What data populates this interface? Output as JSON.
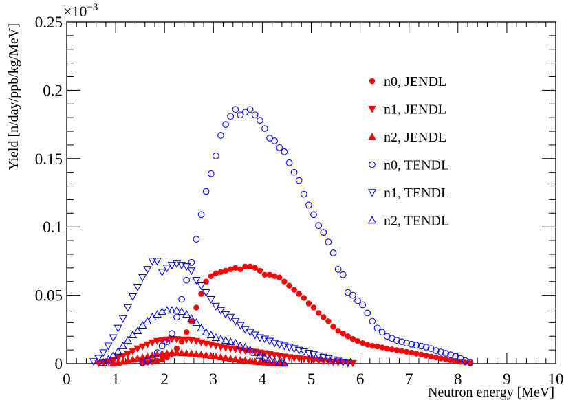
{
  "chart_data": {
    "type": "scatter",
    "xlabel": "Neutron energy [MeV]",
    "ylabel": "Yield [n/day/ppb/kg/MeV]",
    "y_exponent_label": "×10",
    "y_exponent_power": "−3",
    "xlim": [
      0,
      10
    ],
    "ylim": [
      0,
      0.25
    ],
    "x_ticks": [
      "0",
      "1",
      "2",
      "3",
      "4",
      "5",
      "6",
      "7",
      "8",
      "9",
      "10"
    ],
    "y_ticks": [
      "0",
      "0.05",
      "0.1",
      "0.15",
      "0.2",
      "0.25"
    ],
    "y_tick_values": [
      0,
      0.05,
      0.1,
      0.15,
      0.2,
      0.25
    ],
    "grid": false,
    "legend_position": "top-right",
    "series": [
      {
        "name": "n0, JENDL",
        "marker": "filled-circle",
        "color": "#ff0000",
        "x": [
          1.55,
          1.65,
          1.75,
          1.85,
          1.95,
          2.05,
          2.15,
          2.25,
          2.35,
          2.45,
          2.55,
          2.65,
          2.75,
          2.85,
          2.95,
          3.05,
          3.15,
          3.25,
          3.35,
          3.45,
          3.55,
          3.65,
          3.75,
          3.85,
          3.95,
          4.05,
          4.15,
          4.25,
          4.35,
          4.45,
          4.55,
          4.65,
          4.75,
          4.85,
          4.95,
          5.05,
          5.15,
          5.25,
          5.35,
          5.45,
          5.55,
          5.65,
          5.75,
          5.85,
          5.95,
          6.05,
          6.15,
          6.25,
          6.35,
          6.45,
          6.55,
          6.65,
          6.75,
          6.85,
          6.95,
          7.05,
          7.15,
          7.25,
          7.35,
          7.45,
          7.55,
          7.65,
          7.75,
          7.85,
          7.95,
          8.05,
          8.15,
          8.25
        ],
        "y": [
          0.0004,
          0.0008,
          0.0013,
          0.002,
          0.003,
          0.0045,
          0.007,
          0.011,
          0.016,
          0.023,
          0.031,
          0.041,
          0.051,
          0.06,
          0.064,
          0.066,
          0.067,
          0.068,
          0.069,
          0.07,
          0.069,
          0.071,
          0.071,
          0.07,
          0.068,
          0.065,
          0.065,
          0.064,
          0.063,
          0.06,
          0.057,
          0.054,
          0.051,
          0.048,
          0.044,
          0.041,
          0.037,
          0.034,
          0.031,
          0.027,
          0.024,
          0.022,
          0.02,
          0.018,
          0.0165,
          0.015,
          0.0138,
          0.013,
          0.0125,
          0.0118,
          0.011,
          0.0104,
          0.0098,
          0.0092,
          0.0086,
          0.008,
          0.0073,
          0.0066,
          0.0059,
          0.0052,
          0.0045,
          0.0038,
          0.0031,
          0.0025,
          0.0019,
          0.0013,
          0.0008,
          0.0004
        ]
      },
      {
        "name": "n1, JENDL",
        "marker": "filled-triangle-down",
        "color": "#ff0000",
        "x": [
          0.65,
          0.75,
          0.85,
          0.95,
          1.05,
          1.15,
          1.25,
          1.35,
          1.45,
          1.55,
          1.65,
          1.75,
          1.85,
          1.95,
          2.05,
          2.15,
          2.25,
          2.35,
          2.45,
          2.55,
          2.65,
          2.75,
          2.85,
          2.95,
          3.05,
          3.15,
          3.25,
          3.35,
          3.45,
          3.55,
          3.65,
          3.75,
          3.85,
          3.95,
          4.05,
          4.15,
          4.25,
          4.35,
          4.45,
          4.55,
          4.65,
          4.75,
          4.85,
          4.95,
          5.05,
          5.15,
          5.25,
          5.35,
          5.45,
          5.55,
          5.65,
          5.75,
          5.85
        ],
        "y": [
          0.0003,
          0.0008,
          0.0015,
          0.0025,
          0.004,
          0.0055,
          0.007,
          0.009,
          0.011,
          0.0125,
          0.014,
          0.0155,
          0.0165,
          0.017,
          0.0175,
          0.018,
          0.0178,
          0.0175,
          0.0175,
          0.0172,
          0.0165,
          0.0155,
          0.0145,
          0.014,
          0.013,
          0.012,
          0.0115,
          0.011,
          0.0105,
          0.01,
          0.0095,
          0.009,
          0.0085,
          0.008,
          0.0075,
          0.0068,
          0.0062,
          0.0056,
          0.0051,
          0.0046,
          0.0041,
          0.0037,
          0.0033,
          0.0029,
          0.0025,
          0.0022,
          0.0019,
          0.0016,
          0.0013,
          0.001,
          0.0008,
          0.0006,
          0.0004
        ]
      },
      {
        "name": "n2, JENDL",
        "marker": "filled-triangle-up",
        "color": "#ff0000",
        "x": [
          0.95,
          1.05,
          1.15,
          1.25,
          1.35,
          1.45,
          1.55,
          1.65,
          1.75,
          1.85,
          1.95,
          2.05,
          2.15,
          2.25,
          2.35,
          2.45,
          2.55,
          2.65,
          2.75,
          2.85,
          2.95,
          3.05,
          3.15,
          3.25,
          3.35,
          3.45,
          3.55,
          3.65,
          3.75,
          3.85,
          3.95,
          4.05,
          4.15,
          4.25,
          4.35,
          4.45
        ],
        "y": [
          0.0003,
          0.0008,
          0.0015,
          0.0022,
          0.003,
          0.0038,
          0.0045,
          0.0052,
          0.006,
          0.0067,
          0.0072,
          0.0075,
          0.0078,
          0.008,
          0.0078,
          0.0076,
          0.0074,
          0.007,
          0.0066,
          0.0062,
          0.0057,
          0.0052,
          0.0047,
          0.0042,
          0.0037,
          0.0032,
          0.0027,
          0.0023,
          0.0019,
          0.0015,
          0.0012,
          0.0009,
          0.0006,
          0.0004,
          0.0002,
          0.0001
        ]
      },
      {
        "name": "n0, TENDL",
        "marker": "open-circle",
        "color": "#0000ff",
        "x": [
          1.55,
          1.65,
          1.75,
          1.85,
          1.95,
          2.05,
          2.15,
          2.25,
          2.35,
          2.45,
          2.55,
          2.65,
          2.75,
          2.85,
          2.95,
          3.05,
          3.15,
          3.25,
          3.35,
          3.45,
          3.55,
          3.65,
          3.75,
          3.85,
          3.95,
          4.05,
          4.15,
          4.25,
          4.35,
          4.45,
          4.55,
          4.65,
          4.75,
          4.85,
          4.95,
          5.05,
          5.15,
          5.25,
          5.35,
          5.45,
          5.55,
          5.65,
          5.75,
          5.85,
          5.95,
          6.05,
          6.15,
          6.25,
          6.35,
          6.45,
          6.55,
          6.65,
          6.75,
          6.85,
          6.95,
          7.05,
          7.15,
          7.25,
          7.35,
          7.45,
          7.55,
          7.65,
          7.75,
          7.85,
          7.95,
          8.05,
          8.15,
          8.25
        ],
        "y": [
          0.0006,
          0.002,
          0.004,
          0.008,
          0.013,
          0.016,
          0.022,
          0.034,
          0.047,
          0.061,
          0.074,
          0.091,
          0.109,
          0.126,
          0.139,
          0.152,
          0.167,
          0.175,
          0.181,
          0.186,
          0.182,
          0.184,
          0.186,
          0.182,
          0.178,
          0.172,
          0.165,
          0.163,
          0.158,
          0.155,
          0.147,
          0.14,
          0.134,
          0.124,
          0.116,
          0.109,
          0.101,
          0.096,
          0.089,
          0.081,
          0.069,
          0.065,
          0.052,
          0.05,
          0.046,
          0.043,
          0.037,
          0.031,
          0.026,
          0.023,
          0.02,
          0.0185,
          0.017,
          0.016,
          0.015,
          0.0142,
          0.0135,
          0.0128,
          0.012,
          0.011,
          0.0095,
          0.0085,
          0.0075,
          0.0065,
          0.0052,
          0.0038,
          0.0022,
          0.0008
        ]
      },
      {
        "name": "n1, TENDL",
        "marker": "open-triangle-down",
        "color": "#0000ff",
        "x": [
          0.55,
          0.65,
          0.75,
          0.85,
          0.95,
          1.05,
          1.15,
          1.25,
          1.35,
          1.45,
          1.55,
          1.65,
          1.75,
          1.85,
          1.95,
          2.05,
          2.15,
          2.25,
          2.35,
          2.45,
          2.55,
          2.65,
          2.75,
          2.85,
          2.95,
          3.05,
          3.15,
          3.25,
          3.35,
          3.45,
          3.55,
          3.65,
          3.75,
          3.85,
          3.95,
          4.05,
          4.15,
          4.25,
          4.35,
          4.45,
          4.55,
          4.65,
          4.75,
          4.85,
          4.95,
          5.05,
          5.15,
          5.25,
          5.35,
          5.45,
          5.55,
          5.65,
          5.75
        ],
        "y": [
          0.0015,
          0.004,
          0.008,
          0.013,
          0.019,
          0.026,
          0.033,
          0.041,
          0.049,
          0.056,
          0.063,
          0.069,
          0.075,
          0.075,
          0.067,
          0.07,
          0.072,
          0.073,
          0.072,
          0.071,
          0.068,
          0.061,
          0.057,
          0.052,
          0.047,
          0.042,
          0.039,
          0.036,
          0.034,
          0.031,
          0.028,
          0.025,
          0.023,
          0.021,
          0.019,
          0.018,
          0.0165,
          0.015,
          0.014,
          0.013,
          0.012,
          0.011,
          0.0098,
          0.0087,
          0.0077,
          0.0068,
          0.0058,
          0.0048,
          0.0038,
          0.0028,
          0.0019,
          0.0011,
          0.0005
        ]
      },
      {
        "name": "n2, TENDL",
        "marker": "open-triangle-up",
        "color": "#0000ff",
        "x": [
          0.75,
          0.85,
          0.95,
          1.05,
          1.15,
          1.25,
          1.35,
          1.45,
          1.55,
          1.65,
          1.75,
          1.85,
          1.95,
          2.05,
          2.15,
          2.25,
          2.35,
          2.45,
          2.55,
          2.65,
          2.75,
          2.85,
          2.95,
          3.05,
          3.15,
          3.25,
          3.35,
          3.45,
          3.55,
          3.65,
          3.75,
          3.85,
          3.95,
          4.05,
          4.15,
          4.25,
          4.35,
          4.45
        ],
        "y": [
          0.0008,
          0.003,
          0.006,
          0.009,
          0.013,
          0.017,
          0.021,
          0.024,
          0.028,
          0.031,
          0.034,
          0.036,
          0.038,
          0.039,
          0.039,
          0.039,
          0.038,
          0.036,
          0.033,
          0.03,
          0.026,
          0.023,
          0.021,
          0.019,
          0.018,
          0.017,
          0.016,
          0.015,
          0.013,
          0.012,
          0.01,
          0.008,
          0.006,
          0.0045,
          0.003,
          0.0018,
          0.0009,
          0.0003
        ]
      }
    ]
  }
}
